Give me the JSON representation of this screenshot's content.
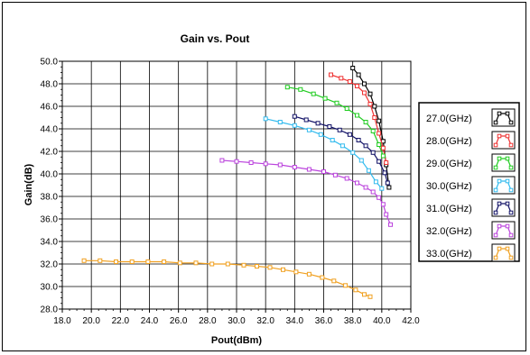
{
  "chart_data": {
    "type": "line",
    "title": "Gain vs. Pout",
    "xlabel": "Pout(dBm)",
    "ylabel": "Gain(dB)",
    "xlim": [
      18.0,
      42.0
    ],
    "ylim": [
      28.0,
      50.0
    ],
    "xticks": [
      "18.0",
      "20.0",
      "22.0",
      "24.0",
      "26.0",
      "28.0",
      "30.0",
      "32.0",
      "34.0",
      "36.0",
      "38.0",
      "40.0",
      "42.0"
    ],
    "yticks": [
      "28.0",
      "30.0",
      "32.0",
      "34.0",
      "36.0",
      "38.0",
      "40.0",
      "42.0",
      "44.0",
      "46.0",
      "48.0",
      "50.0"
    ],
    "grid": true,
    "legend_position": "right",
    "series": [
      {
        "name": "27.0(GHz)",
        "color": "#000000",
        "x": [
          38.0,
          38.4,
          38.8,
          39.2,
          39.5,
          39.8,
          40.1,
          40.3,
          40.5
        ],
        "y": [
          49.4,
          48.8,
          48.0,
          47.1,
          46.0,
          44.7,
          42.9,
          40.8,
          38.8
        ]
      },
      {
        "name": "28.0(GHz)",
        "color": "#ee3333",
        "x": [
          36.5,
          37.2,
          37.8,
          38.3,
          38.8,
          39.2,
          39.5,
          39.8,
          40.1,
          40.3
        ],
        "y": [
          48.8,
          48.5,
          48.2,
          47.8,
          47.2,
          46.2,
          45.0,
          43.6,
          42.3,
          41.0
        ]
      },
      {
        "name": "29.0(GHz)",
        "color": "#22cc22",
        "x": [
          33.5,
          34.4,
          35.3,
          36.1,
          36.9,
          37.6,
          38.3,
          38.9,
          39.4,
          39.8,
          40.1
        ],
        "y": [
          47.7,
          47.5,
          47.1,
          46.7,
          46.3,
          45.8,
          45.2,
          44.6,
          43.8,
          42.6,
          41.6
        ]
      },
      {
        "name": "30.0(GHz)",
        "color": "#33bbee",
        "x": [
          32.0,
          33.0,
          34.0,
          35.0,
          35.8,
          36.6,
          37.3,
          38.0,
          38.6,
          39.1,
          39.6,
          40.0
        ],
        "y": [
          44.9,
          44.6,
          44.3,
          43.9,
          43.5,
          43.0,
          42.5,
          41.9,
          41.2,
          40.3,
          39.3,
          38.7
        ]
      },
      {
        "name": "31.0(GHz)",
        "color": "#111166",
        "x": [
          34.0,
          34.8,
          35.6,
          36.4,
          37.1,
          37.8,
          38.4,
          38.9,
          39.4,
          39.8,
          40.2,
          40.4
        ],
        "y": [
          45.1,
          44.8,
          44.5,
          44.2,
          43.9,
          43.5,
          43.0,
          42.5,
          41.9,
          41.1,
          40.1,
          39.2
        ]
      },
      {
        "name": "32.0(GHz)",
        "color": "#bb44dd",
        "x": [
          29.0,
          30.0,
          31.0,
          32.0,
          33.0,
          34.0,
          35.0,
          36.0,
          36.8,
          37.6,
          38.3,
          38.9,
          39.4,
          39.8,
          40.1,
          40.3,
          40.6
        ],
        "y": [
          41.2,
          41.1,
          41.0,
          40.9,
          40.8,
          40.6,
          40.4,
          40.2,
          39.9,
          39.6,
          39.2,
          38.8,
          38.4,
          37.9,
          37.3,
          36.4,
          35.5
        ]
      },
      {
        "name": "33.0(GHz)",
        "color": "#f0a020",
        "x": [
          19.5,
          20.6,
          21.7,
          22.8,
          23.9,
          25.0,
          26.1,
          27.2,
          28.3,
          29.4,
          30.5,
          31.4,
          32.3,
          33.2,
          34.1,
          35.0,
          35.9,
          36.7,
          37.5,
          38.2,
          38.8,
          39.2
        ],
        "y": [
          32.3,
          32.3,
          32.2,
          32.2,
          32.2,
          32.2,
          32.1,
          32.1,
          32.0,
          32.0,
          31.9,
          31.8,
          31.7,
          31.5,
          31.3,
          31.1,
          30.8,
          30.5,
          30.1,
          29.7,
          29.3,
          29.1
        ]
      }
    ]
  }
}
